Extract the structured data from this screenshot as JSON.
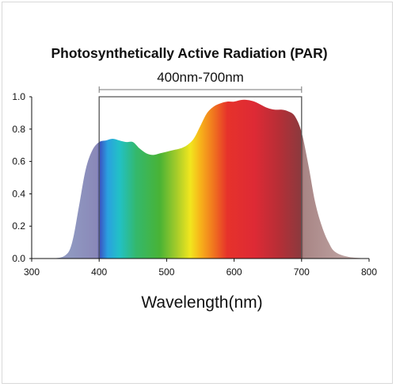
{
  "chart_data": {
    "type": "area",
    "title": "Photosynthetically Active Radiation (PAR)",
    "annotation": "400nm-700nm",
    "band": [
      400,
      700
    ],
    "xlabel": "Wavelength(nm)",
    "ylabel": "",
    "xlim": [
      300,
      800
    ],
    "ylim": [
      0,
      1.0
    ],
    "xticks": [
      "300",
      "400",
      "500",
      "600",
      "700",
      "800"
    ],
    "yticks": [
      "0.0",
      "0.2",
      "0.4",
      "0.6",
      "0.8",
      "1.0"
    ],
    "grid": false,
    "legend": "none",
    "x": [
      300,
      330,
      350,
      360,
      370,
      380,
      390,
      400,
      410,
      420,
      430,
      440,
      450,
      460,
      470,
      480,
      490,
      500,
      510,
      520,
      530,
      540,
      550,
      560,
      570,
      580,
      590,
      600,
      610,
      620,
      630,
      640,
      650,
      660,
      670,
      680,
      690,
      700,
      710,
      720,
      730,
      740,
      750,
      770,
      800
    ],
    "y": [
      0.0,
      0.0,
      0.02,
      0.1,
      0.32,
      0.55,
      0.67,
      0.72,
      0.73,
      0.74,
      0.73,
      0.72,
      0.72,
      0.68,
      0.65,
      0.64,
      0.65,
      0.66,
      0.67,
      0.68,
      0.7,
      0.74,
      0.82,
      0.9,
      0.94,
      0.96,
      0.97,
      0.97,
      0.98,
      0.98,
      0.97,
      0.95,
      0.93,
      0.92,
      0.92,
      0.91,
      0.88,
      0.78,
      0.58,
      0.35,
      0.2,
      0.1,
      0.04,
      0.01,
      0.0
    ]
  }
}
